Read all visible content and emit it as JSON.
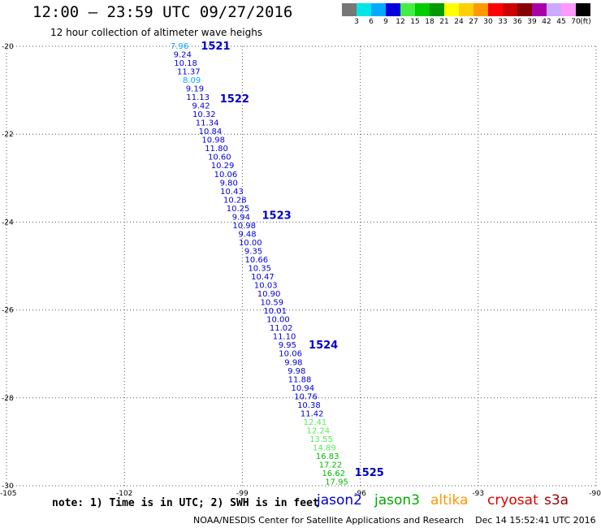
{
  "header": {
    "title": "12:00 — 23:59 UTC 09/27/2016",
    "subtitle": "12 hour collection of altimeter wave heighs"
  },
  "scale": {
    "unit": "(ft)",
    "bins": [
      {
        "label": "3",
        "color": "#777777"
      },
      {
        "label": "6",
        "color": "#00e5e5"
      },
      {
        "label": "9",
        "color": "#00aaff"
      },
      {
        "label": "12",
        "color": "#0000dd"
      },
      {
        "label": "15",
        "color": "#44ee44"
      },
      {
        "label": "18",
        "color": "#00cc00"
      },
      {
        "label": "21",
        "color": "#009900"
      },
      {
        "label": "24",
        "color": "#ffff00"
      },
      {
        "label": "27",
        "color": "#ffd000"
      },
      {
        "label": "30",
        "color": "#ff9900"
      },
      {
        "label": "33",
        "color": "#ff0000"
      },
      {
        "label": "36",
        "color": "#cc0000"
      },
      {
        "label": "39",
        "color": "#880000"
      },
      {
        "label": "42",
        "color": "#aa00aa"
      },
      {
        "label": "45",
        "color": "#ccaaff"
      },
      {
        "label": "70",
        "color": "#ff99ff"
      },
      {
        "label": "",
        "color": "#000000"
      }
    ]
  },
  "map": {
    "lon_range": [
      -105,
      -90
    ],
    "lat_range": [
      -30,
      -20
    ],
    "x_ticks": [
      "-105",
      "-102",
      "-99",
      "-96",
      "-93",
      "-90"
    ],
    "y_ticks": [
      "-20",
      "-22",
      "-24",
      "-26",
      "-28",
      "-30"
    ],
    "grid": true,
    "passes": [
      "1521",
      "1522",
      "1523",
      "1524",
      "1525"
    ],
    "passes_lat": [
      -20.0,
      -21.2,
      -23.85,
      -26.8,
      -29.7
    ],
    "swh": [
      {
        "v": "7.96",
        "c": "#00aaff"
      },
      {
        "v": "9.24",
        "c": "#0000dd"
      },
      {
        "v": "10.18",
        "c": "#0000dd"
      },
      {
        "v": "11.37",
        "c": "#0000dd"
      },
      {
        "v": "8.09",
        "c": "#00aaff"
      },
      {
        "v": "9.19",
        "c": "#0000dd"
      },
      {
        "v": "11.13",
        "c": "#0000dd"
      },
      {
        "v": "9.42",
        "c": "#0000dd"
      },
      {
        "v": "10.32",
        "c": "#0000dd"
      },
      {
        "v": "11.34",
        "c": "#0000dd"
      },
      {
        "v": "10.84",
        "c": "#0000dd"
      },
      {
        "v": "10.98",
        "c": "#0000dd"
      },
      {
        "v": "11.80",
        "c": "#0000dd"
      },
      {
        "v": "10.60",
        "c": "#0000dd"
      },
      {
        "v": "10.29",
        "c": "#0000dd"
      },
      {
        "v": "10.06",
        "c": "#0000dd"
      },
      {
        "v": "9.80",
        "c": "#0000dd"
      },
      {
        "v": "10.43",
        "c": "#0000dd"
      },
      {
        "v": "10.28",
        "c": "#0000dd"
      },
      {
        "v": "10.25",
        "c": "#0000dd"
      },
      {
        "v": "9.94",
        "c": "#0000dd"
      },
      {
        "v": "10.98",
        "c": "#0000dd"
      },
      {
        "v": "9.48",
        "c": "#0000dd"
      },
      {
        "v": "10.00",
        "c": "#0000dd"
      },
      {
        "v": "9.35",
        "c": "#0000dd"
      },
      {
        "v": "10.66",
        "c": "#0000dd"
      },
      {
        "v": "10.35",
        "c": "#0000dd"
      },
      {
        "v": "10.47",
        "c": "#0000dd"
      },
      {
        "v": "10.03",
        "c": "#0000dd"
      },
      {
        "v": "10.90",
        "c": "#0000dd"
      },
      {
        "v": "10.59",
        "c": "#0000dd"
      },
      {
        "v": "10.01",
        "c": "#0000dd"
      },
      {
        "v": "10.00",
        "c": "#0000dd"
      },
      {
        "v": "11.02",
        "c": "#0000dd"
      },
      {
        "v": "11.10",
        "c": "#0000dd"
      },
      {
        "v": "9.95",
        "c": "#0000dd"
      },
      {
        "v": "10.06",
        "c": "#0000dd"
      },
      {
        "v": "9.98",
        "c": "#0000dd"
      },
      {
        "v": "9.98",
        "c": "#0000dd"
      },
      {
        "v": "11.88",
        "c": "#0000dd"
      },
      {
        "v": "10.94",
        "c": "#0000dd"
      },
      {
        "v": "10.76",
        "c": "#0000dd"
      },
      {
        "v": "10.38",
        "c": "#0000dd"
      },
      {
        "v": "11.42",
        "c": "#0000dd"
      },
      {
        "v": "12.41",
        "c": "#55ee55"
      },
      {
        "v": "12.24",
        "c": "#55ee55"
      },
      {
        "v": "13.55",
        "c": "#55ee55"
      },
      {
        "v": "14.89",
        "c": "#55ee55"
      },
      {
        "v": "16.83",
        "c": "#00bb00"
      },
      {
        "v": "17.22",
        "c": "#00bb00"
      },
      {
        "v": "16.62",
        "c": "#00bb00"
      },
      {
        "v": "17.95",
        "c": "#00bb00"
      }
    ]
  },
  "note": "note: 1) Time is in UTC; 2) SWH is in feet",
  "legend": [
    {
      "name": "jason2",
      "color": "#0000cc"
    },
    {
      "name": "jason3",
      "color": "#00aa00"
    },
    {
      "name": "altika",
      "color": "#ff9900"
    },
    {
      "name": "cryosat",
      "color": "#dd0000"
    },
    {
      "name": "s3a",
      "color": "#990000"
    }
  ],
  "footer": {
    "org": "NOAA/NESDIS Center for Satellite Applications and Research",
    "timestamp": "Dec 14 15:52:41 UTC 2016"
  }
}
